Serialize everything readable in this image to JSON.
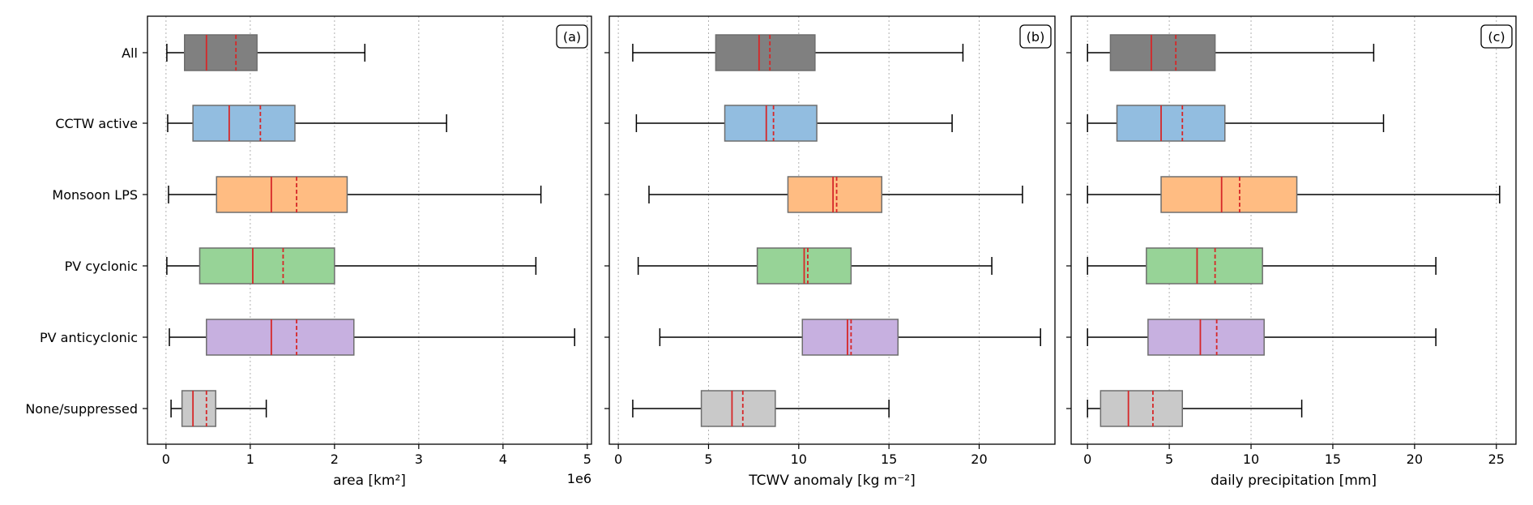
{
  "chart_data": [
    {
      "type": "boxplot",
      "panel_label": "(a)",
      "xlabel": "area [km²]",
      "offset_text": "1e6",
      "xlim": [
        -0.22,
        5.05
      ],
      "xticks": [
        0,
        1,
        2,
        3,
        4,
        5
      ],
      "grid": "x-dotted",
      "categories": [
        "All",
        "CCTW active",
        "Monsoon LPS",
        "PV cyclonic",
        "PV anticyclonic",
        "None/suppressed"
      ],
      "boxes": [
        {
          "category": "All",
          "whisker_low": 0.01,
          "q1": 0.22,
          "median": 0.48,
          "mean": 0.83,
          "q3": 1.08,
          "whisker_high": 2.36,
          "color": "#808080"
        },
        {
          "category": "CCTW active",
          "whisker_low": 0.02,
          "q1": 0.32,
          "median": 0.75,
          "mean": 1.12,
          "q3": 1.53,
          "whisker_high": 3.33,
          "color": "#92bde0"
        },
        {
          "category": "Monsoon LPS",
          "whisker_low": 0.03,
          "q1": 0.6,
          "median": 1.25,
          "mean": 1.55,
          "q3": 2.15,
          "whisker_high": 4.45,
          "color": "#ffbc82"
        },
        {
          "category": "PV cyclonic",
          "whisker_low": 0.01,
          "q1": 0.4,
          "median": 1.03,
          "mean": 1.39,
          "q3": 2.0,
          "whisker_high": 4.39,
          "color": "#97d397"
        },
        {
          "category": "PV anticyclonic",
          "whisker_low": 0.04,
          "q1": 0.48,
          "median": 1.25,
          "mean": 1.55,
          "q3": 2.23,
          "whisker_high": 4.85,
          "color": "#c7b0e0"
        },
        {
          "category": "None/suppressed",
          "whisker_low": 0.06,
          "q1": 0.19,
          "median": 0.32,
          "mean": 0.48,
          "q3": 0.59,
          "whisker_high": 1.19,
          "color": "#c9c9c9"
        }
      ]
    },
    {
      "type": "boxplot",
      "panel_label": "(b)",
      "xlabel": "TCWV anomaly [kg m⁻²]",
      "xlim": [
        -0.5,
        24.2
      ],
      "xticks": [
        0,
        5,
        10,
        15,
        20
      ],
      "grid": "x-dotted",
      "categories": [
        "All",
        "CCTW active",
        "Monsoon LPS",
        "PV cyclonic",
        "PV anticyclonic",
        "None/suppressed"
      ],
      "boxes": [
        {
          "category": "All",
          "whisker_low": 0.8,
          "q1": 5.4,
          "median": 7.8,
          "mean": 8.4,
          "q3": 10.9,
          "whisker_high": 19.1,
          "color": "#808080"
        },
        {
          "category": "CCTW active",
          "whisker_low": 1.0,
          "q1": 5.9,
          "median": 8.2,
          "mean": 8.6,
          "q3": 11.0,
          "whisker_high": 18.5,
          "color": "#92bde0"
        },
        {
          "category": "Monsoon LPS",
          "whisker_low": 1.7,
          "q1": 9.4,
          "median": 11.9,
          "mean": 12.1,
          "q3": 14.6,
          "whisker_high": 22.4,
          "color": "#ffbc82"
        },
        {
          "category": "PV cyclonic",
          "whisker_low": 1.1,
          "q1": 7.7,
          "median": 10.3,
          "mean": 10.5,
          "q3": 12.9,
          "whisker_high": 20.7,
          "color": "#97d397"
        },
        {
          "category": "PV anticyclonic",
          "whisker_low": 2.3,
          "q1": 10.2,
          "median": 12.7,
          "mean": 12.9,
          "q3": 15.5,
          "whisker_high": 23.4,
          "color": "#c7b0e0"
        },
        {
          "category": "None/suppressed",
          "whisker_low": 0.8,
          "q1": 4.6,
          "median": 6.3,
          "mean": 6.9,
          "q3": 8.7,
          "whisker_high": 15.0,
          "color": "#c9c9c9"
        }
      ]
    },
    {
      "type": "boxplot",
      "panel_label": "(c)",
      "xlabel": "daily precipitation [mm]",
      "xlim": [
        -1.0,
        26.2
      ],
      "xticks": [
        0,
        5,
        10,
        15,
        20,
        25
      ],
      "grid": "x-dotted",
      "categories": [
        "All",
        "CCTW active",
        "Monsoon LPS",
        "PV cyclonic",
        "PV anticyclonic",
        "None/suppressed"
      ],
      "boxes": [
        {
          "category": "All",
          "whisker_low": 0.0,
          "q1": 1.4,
          "median": 3.9,
          "mean": 5.4,
          "q3": 7.8,
          "whisker_high": 17.5,
          "color": "#808080"
        },
        {
          "category": "CCTW active",
          "whisker_low": 0.0,
          "q1": 1.8,
          "median": 4.5,
          "mean": 5.8,
          "q3": 8.4,
          "whisker_high": 18.1,
          "color": "#92bde0"
        },
        {
          "category": "Monsoon LPS",
          "whisker_low": 0.0,
          "q1": 4.5,
          "median": 8.2,
          "mean": 9.3,
          "q3": 12.8,
          "whisker_high": 25.2,
          "color": "#ffbc82"
        },
        {
          "category": "PV cyclonic",
          "whisker_low": 0.0,
          "q1": 3.6,
          "median": 6.7,
          "mean": 7.8,
          "q3": 10.7,
          "whisker_high": 21.3,
          "color": "#97d397"
        },
        {
          "category": "PV anticyclonic",
          "whisker_low": 0.0,
          "q1": 3.7,
          "median": 6.9,
          "mean": 7.9,
          "q3": 10.8,
          "whisker_high": 21.3,
          "color": "#c7b0e0"
        },
        {
          "category": "None/suppressed",
          "whisker_low": 0.0,
          "q1": 0.8,
          "median": 2.5,
          "mean": 4.0,
          "q3": 5.8,
          "whisker_high": 13.1,
          "color": "#c9c9c9"
        }
      ]
    }
  ],
  "style": {
    "median_color": "#d62728",
    "mean_color": "#d62728",
    "box_edge_color": "#6e6e6e",
    "grid_color": "#b0b0b0"
  }
}
